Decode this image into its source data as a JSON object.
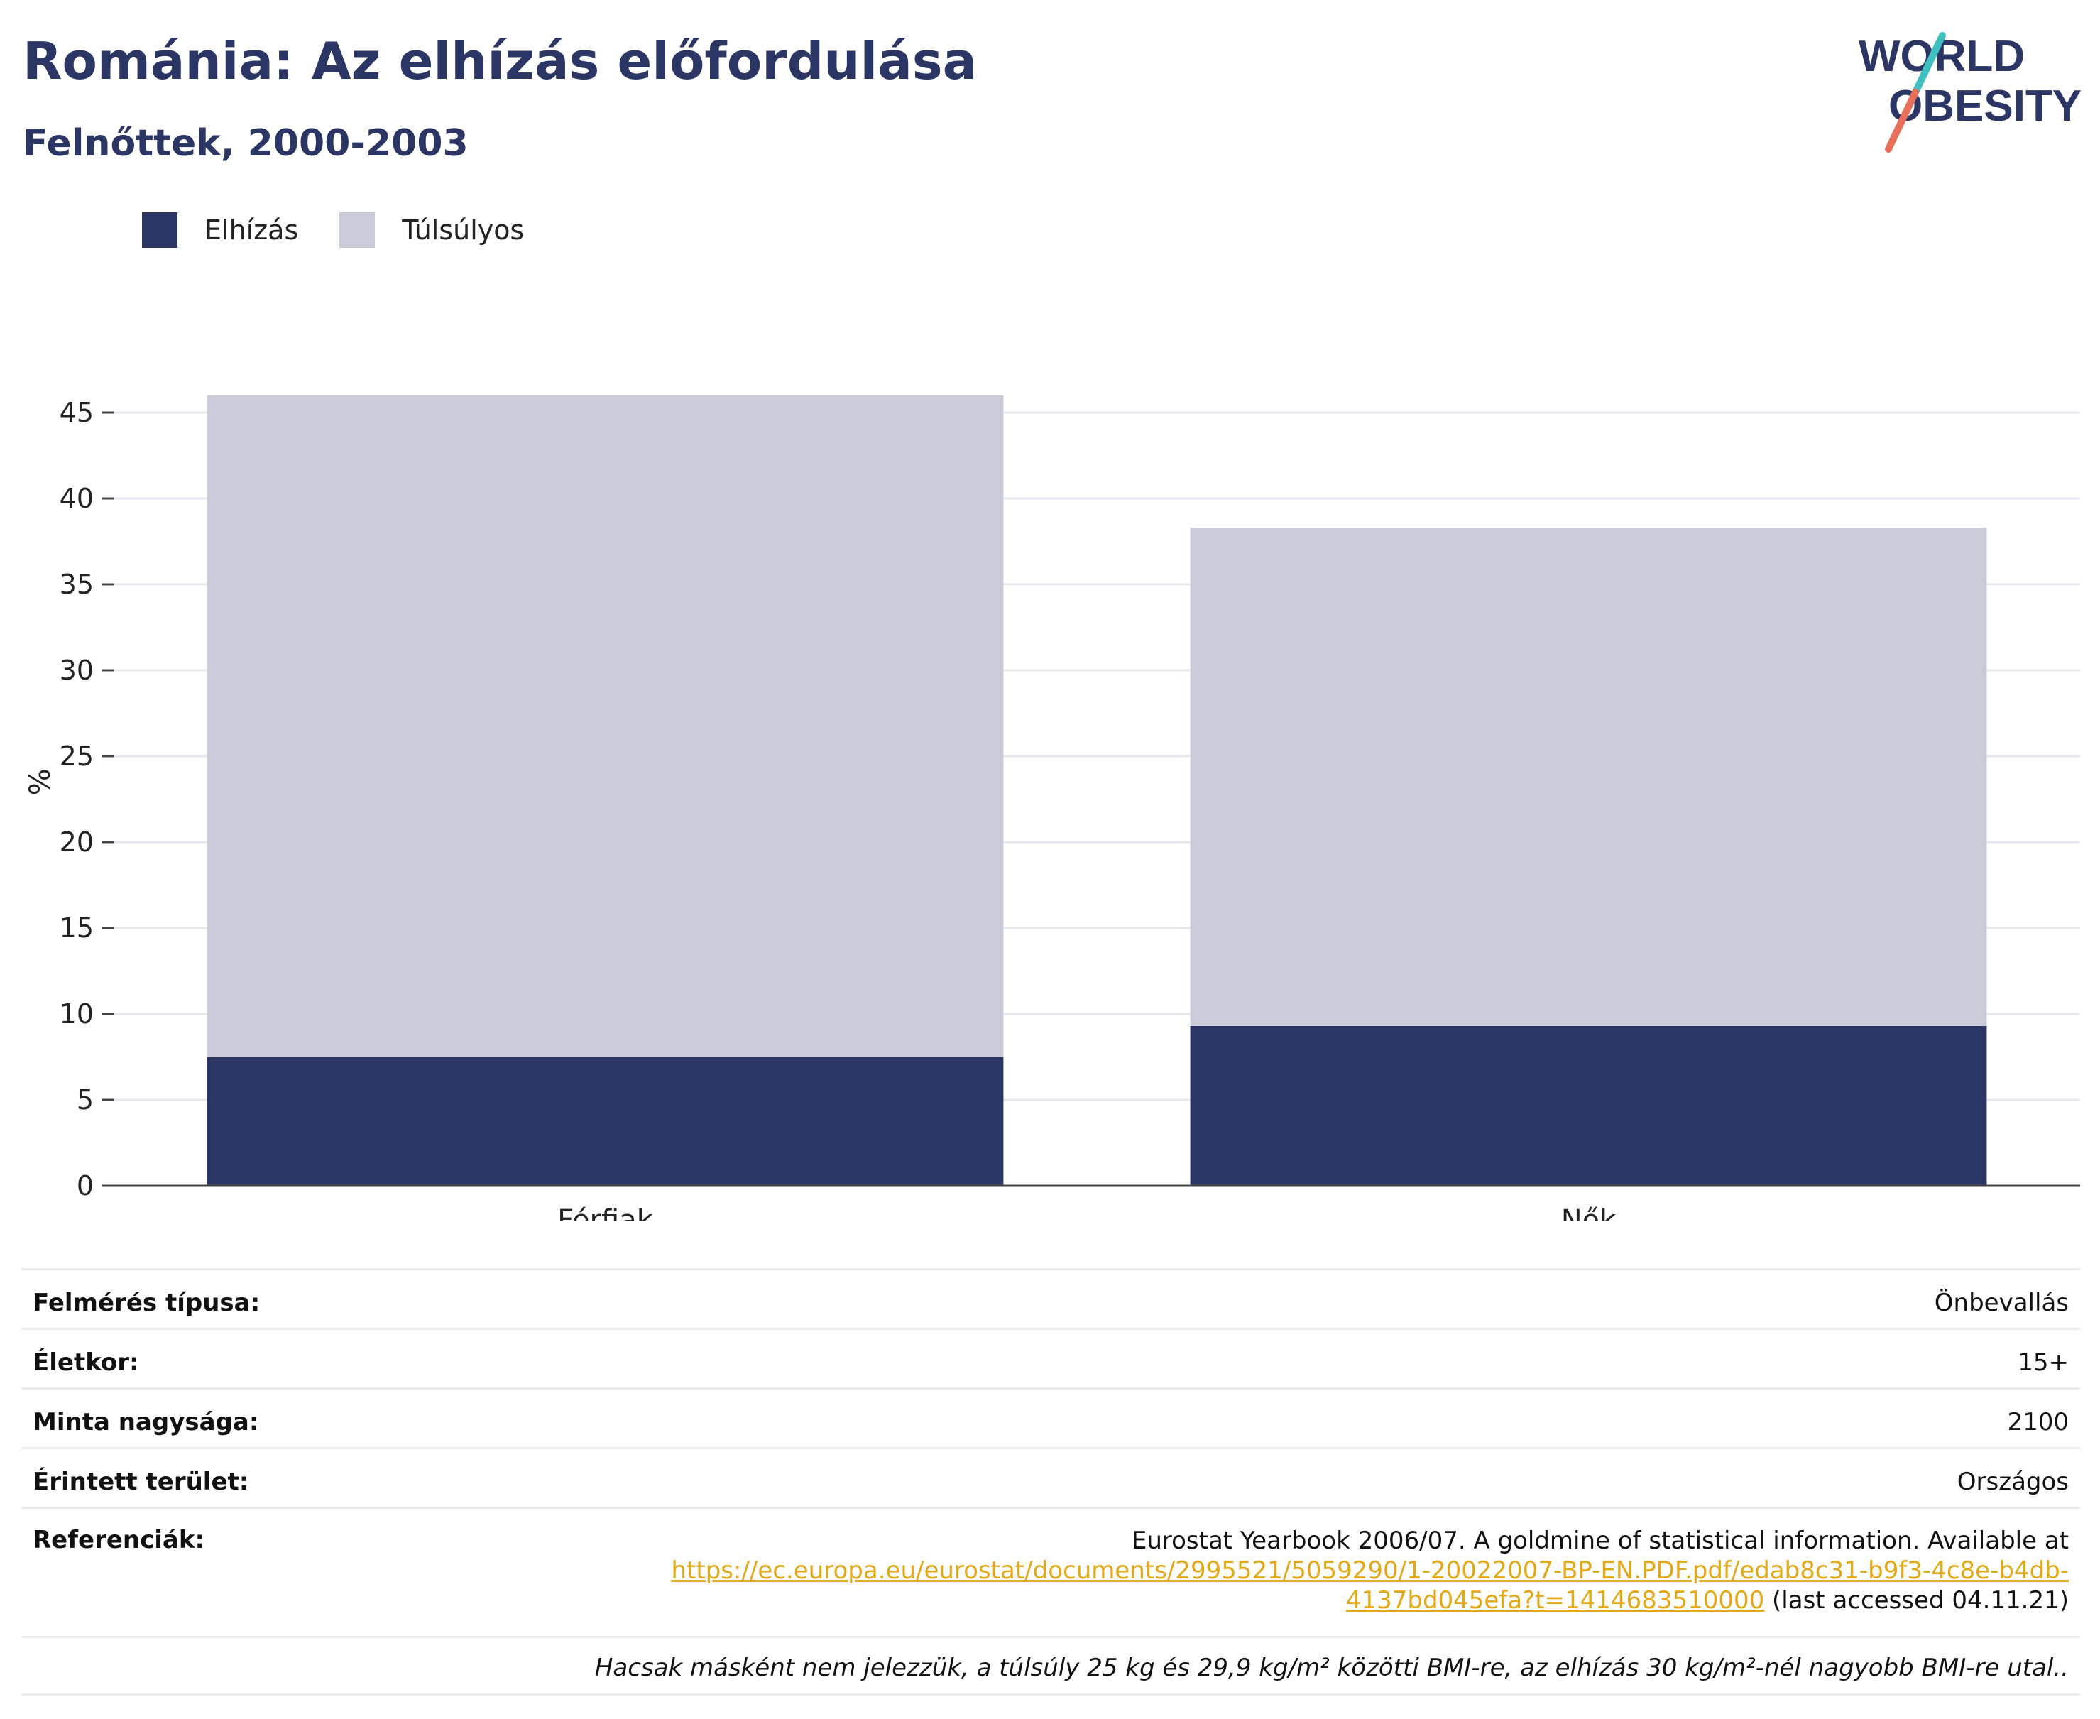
{
  "header": {
    "title": "Románia: Az elhízás előfordulása",
    "subtitle": "Felnőttek, 2000-2003"
  },
  "logo": {
    "line1": "WORLD",
    "line2": "OBESITY"
  },
  "legend": [
    {
      "label": "Elhízás",
      "color": "#2b3664"
    },
    {
      "label": "Túlsúlyos",
      "color": "#c9ccd8"
    }
  ],
  "chart_data": {
    "type": "bar",
    "stacked": true,
    "categories": [
      "Férfiak",
      "Nők"
    ],
    "series": [
      {
        "name": "Elhízás",
        "values": [
          7.5,
          9.3
        ],
        "color": "#2b3664"
      },
      {
        "name": "Túlsúlyos",
        "values": [
          38.5,
          29.0
        ],
        "color": "#c9ccd8"
      }
    ],
    "ylabel": "%",
    "ylim": [
      0,
      47
    ],
    "yticks": [
      0,
      5,
      10,
      15,
      20,
      25,
      30,
      35,
      40,
      45
    ],
    "grid": true,
    "legend_position": "top-left"
  },
  "meta": {
    "survey_type_label": "Felmérés típusa:",
    "survey_type_value": "Önbevallás",
    "age_label": "Életkor:",
    "age_value": "15+",
    "sample_label": "Minta nagysága:",
    "sample_value": "2100",
    "area_label": "Érintett terület:",
    "area_value": "Országos",
    "refs_label": "Referenciák:",
    "refs_text": "Eurostat Yearbook 2006/07. A goldmine of statistical information. Available at",
    "refs_link_line1": "https://ec.europa.eu/eurostat/documents/2995521/5059290/1-20022007-BP-EN.PDF.pdf/edab8c31-b9f3-4c8e-b4db-",
    "refs_link_line2": "4137bd045efa?t=1414683510000",
    "refs_tail": " (last accessed 04.11.21)"
  },
  "note": "Hacsak másként nem jelezzük, a túlsúly 25 kg és 29,9 kg/m² közötti BMI-re, az elhízás 30 kg/m²-nél nagyobb BMI-re utal.."
}
